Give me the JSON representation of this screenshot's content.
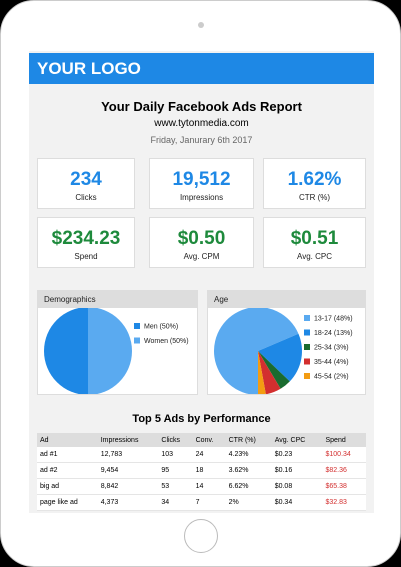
{
  "header": {
    "logo": "YOUR LOGO",
    "title": "Your Daily Facebook Ads Report",
    "website": "www.tytonmedia.com",
    "date": "Friday, Janurary 6th 2017"
  },
  "kpis": [
    {
      "value": "234",
      "label": "Clicks",
      "color": "#1e88e5"
    },
    {
      "value": "19,512",
      "label": "Impressions",
      "color": "#1e88e5"
    },
    {
      "value": "1.62%",
      "label": "CTR (%)",
      "color": "#1e88e5"
    },
    {
      "value": "$234.23",
      "label": "Spend",
      "color": "#1e8a3c"
    },
    {
      "value": "$0.50",
      "label": "Avg. CPM",
      "color": "#1e8a3c"
    },
    {
      "value": "$0.51",
      "label": "Avg. CPC",
      "color": "#1e8a3c"
    }
  ],
  "panels": [
    {
      "title": "Demographics",
      "slices": [
        {
          "label": "Men (50%)",
          "value": 50,
          "color": "#1e88e5"
        },
        {
          "label": "Women (50%)",
          "value": 50,
          "color": "#5aaaf0"
        }
      ]
    },
    {
      "title": "Age",
      "slices": [
        {
          "label": "13-17 (48%)",
          "value": 48,
          "color": "#5aaaf0"
        },
        {
          "label": "18-24 (13%)",
          "value": 13,
          "color": "#1e88e5"
        },
        {
          "label": "25-34 (3%)",
          "value": 3,
          "color": "#1a6b2f"
        },
        {
          "label": "35-44 (4%)",
          "value": 4,
          "color": "#d32f2f"
        },
        {
          "label": "45-54 (2%)",
          "value": 2,
          "color": "#f39c12"
        }
      ]
    }
  ],
  "table": {
    "title": "Top 5 Ads by Performance",
    "columns": [
      "Ad",
      "Impressions",
      "Clicks",
      "Conv.",
      "CTR (%)",
      "Avg. CPC",
      "Spend"
    ],
    "rows": [
      [
        "ad #1",
        "12,783",
        "103",
        "24",
        "4.23%",
        "$0.23",
        "$100.34"
      ],
      [
        "ad #2",
        "9,454",
        "95",
        "18",
        "3.62%",
        "$0.16",
        "$82.36"
      ],
      [
        "big ad",
        "8,842",
        "53",
        "14",
        "6.62%",
        "$0.08",
        "$65.38"
      ],
      [
        "page like ad",
        "4,373",
        "34",
        "7",
        "2%",
        "$0.34",
        "$32.83"
      ]
    ]
  }
}
